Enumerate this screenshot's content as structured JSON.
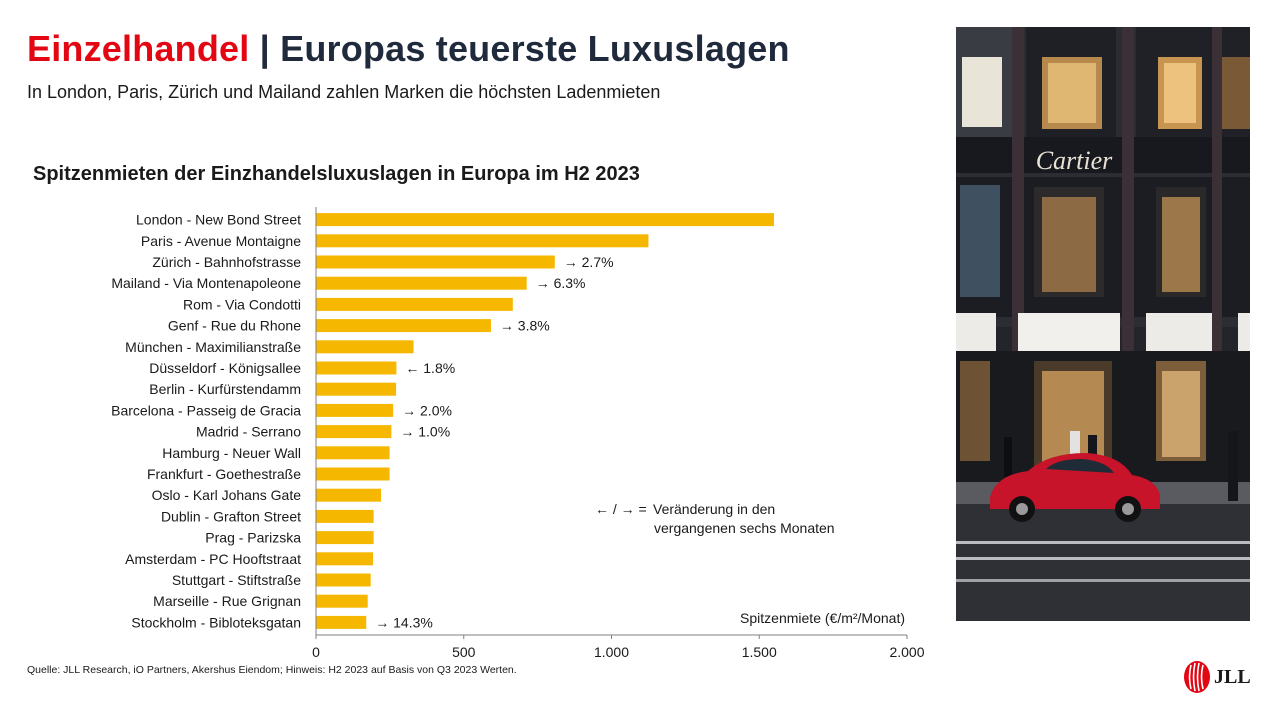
{
  "header": {
    "title_accent": "Einzelhandel",
    "title_rest": " | Europas teuerste Luxuslagen",
    "subtitle": "In London, Paris, Zürich und Mailand zahlen Marken die höchsten Ladenmieten"
  },
  "legend": {
    "symbol": "← / → =",
    "line1": "Veränderung in den",
    "line2": "vergangenen sechs Monaten"
  },
  "footer": {
    "source": "Quelle: JLL Research, iO Partners, Akershus Eiendom; Hinweis: H2 2023 auf Basis von Q3 2023 Werten."
  },
  "photo": {
    "store_sign": "Cartier"
  },
  "logo": {
    "text": "JLL"
  },
  "colors": {
    "accent_red": "#e30613",
    "title_navy": "#1f2a3c",
    "bar": "#f5b700"
  },
  "chart_data": {
    "type": "bar",
    "orientation": "horizontal",
    "title": "Spitzenmieten der Einzhandelsluxuslagen in Europa im H2 2023",
    "xlabel": "Spitzenmiete (€/m²/Monat)",
    "xlim": [
      0,
      2000
    ],
    "xticks": [
      0,
      500,
      1000,
      1500,
      2000
    ],
    "xtick_labels": [
      "0",
      "500",
      "1.000",
      "1.500",
      "2.000"
    ],
    "grid": false,
    "categories": [
      "London - New Bond Street",
      "Paris - Avenue Montaigne",
      "Zürich - Bahnhofstrasse",
      "Mailand - Via Montenapoleone",
      "Rom - Via Condotti",
      "Genf - Rue du Rhone",
      "München - Maximilianstraße",
      "Düsseldorf - Königsallee",
      "Berlin - Kurfürstendamm",
      "Barcelona - Passeig de Gracia",
      "Madrid - Serrano",
      "Hamburg - Neuer Wall",
      "Frankfurt - Goethestraße",
      "Oslo - Karl Johans Gate",
      "Dublin - Grafton Street",
      "Prag - Parizska",
      "Amsterdam - PC Hooftstraat",
      "Stuttgart - Stiftstraße",
      "Marseille - Rue Grignan",
      "Stockholm - Bibloteksgatan"
    ],
    "values": [
      1550,
      1125,
      808,
      713,
      666,
      592,
      330,
      272,
      271,
      261,
      255,
      249,
      249,
      220,
      195,
      195,
      193,
      185,
      175,
      170
    ],
    "annotations": [
      "",
      "",
      "→ 2.7%",
      "→ 6.3%",
      "",
      "→ 3.8%",
      "",
      "← 1.8%",
      "",
      "→ 2.0%",
      "→ 1.0%",
      "",
      "",
      "",
      "",
      "",
      "",
      "",
      "",
      "→ 14.3%"
    ]
  }
}
